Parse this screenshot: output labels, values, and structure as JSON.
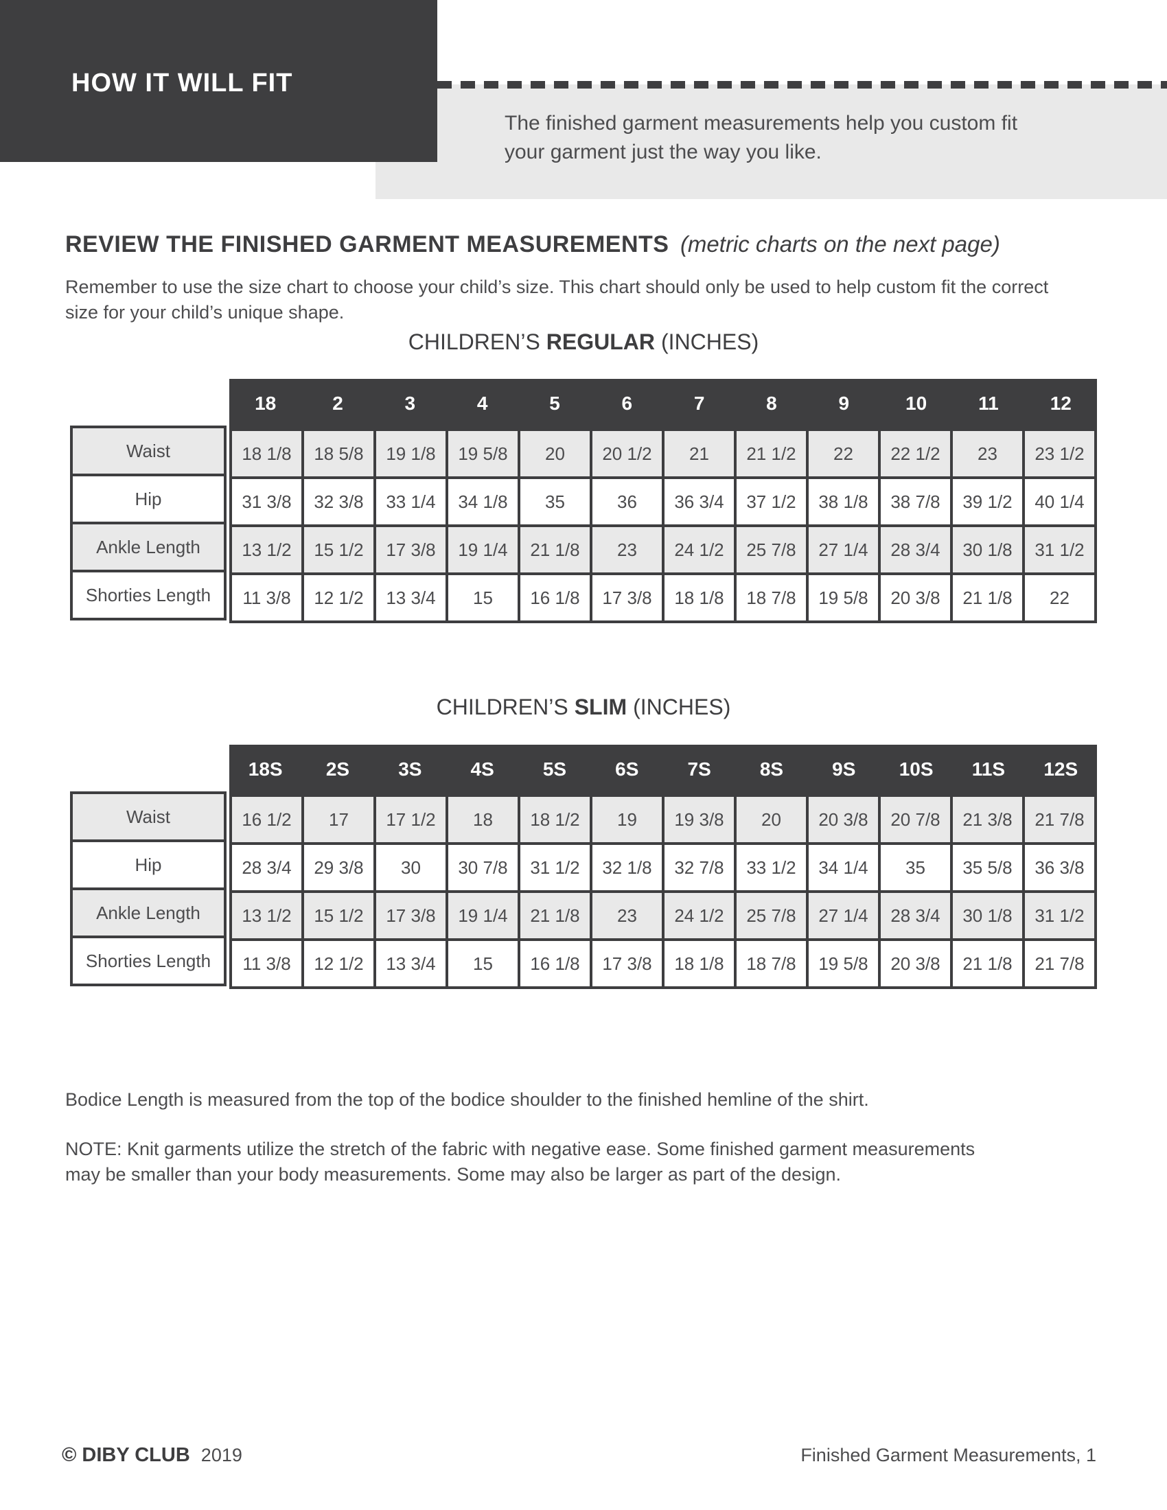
{
  "banner": {
    "title": "HOW IT WILL FIT",
    "intro": "The finished garment measurements help you custom fit your garment just the way you like."
  },
  "section": {
    "heading_bold": "REVIEW THE FINISHED GARMENT MEASUREMENTS",
    "heading_italic": "(metric charts on the next page)",
    "paragraph": "Remember to use the size chart to choose your child’s size. This chart should only be used to help custom fit the correct size for your child’s unique shape."
  },
  "tables": [
    {
      "title_prefix": "CHILDREN’S",
      "title_bold": "REGULAR",
      "title_suffix": "(INCHES)",
      "columns": [
        "18",
        "2",
        "3",
        "4",
        "5",
        "6",
        "7",
        "8",
        "9",
        "10",
        "11",
        "12"
      ],
      "rows": [
        {
          "label": "Waist",
          "values": [
            "18 1/8",
            "18 5/8",
            "19 1/8",
            "19 5/8",
            "20",
            "20 1/2",
            "21",
            "21 1/2",
            "22",
            "22 1/2",
            "23",
            "23 1/2"
          ]
        },
        {
          "label": "Hip",
          "values": [
            "31 3/8",
            "32 3/8",
            "33 1/4",
            "34 1/8",
            "35",
            "36",
            "36 3/4",
            "37 1/2",
            "38 1/8",
            "38 7/8",
            "39 1/2",
            "40 1/4"
          ]
        },
        {
          "label": "Ankle Length",
          "values": [
            "13 1/2",
            "15 1/2",
            "17 3/8",
            "19 1/4",
            "21 1/8",
            "23",
            "24 1/2",
            "25 7/8",
            "27 1/4",
            "28 3/4",
            "30 1/8",
            "31 1/2"
          ]
        },
        {
          "label": "Shorties Length",
          "values": [
            "11 3/8",
            "12 1/2",
            "13 3/4",
            "15",
            "16 1/8",
            "17 3/8",
            "18 1/8",
            "18 7/8",
            "19 5/8",
            "20 3/8",
            "21 1/8",
            "22"
          ]
        }
      ]
    },
    {
      "title_prefix": "CHILDREN’S",
      "title_bold": "SLIM",
      "title_suffix": "(INCHES)",
      "columns": [
        "18S",
        "2S",
        "3S",
        "4S",
        "5S",
        "6S",
        "7S",
        "8S",
        "9S",
        "10S",
        "11S",
        "12S"
      ],
      "rows": [
        {
          "label": "Waist",
          "values": [
            "16 1/2",
            "17",
            "17 1/2",
            "18",
            "18 1/2",
            "19",
            "19 3/8",
            "20",
            "20 3/8",
            "20 7/8",
            "21 3/8",
            "21 7/8"
          ]
        },
        {
          "label": "Hip",
          "values": [
            "28 3/4",
            "29 3/8",
            "30",
            "30 7/8",
            "31 1/2",
            "32 1/8",
            "32 7/8",
            "33 1/2",
            "34 1/4",
            "35",
            "35 5/8",
            "36 3/8"
          ]
        },
        {
          "label": "Ankle Length",
          "values": [
            "13 1/2",
            "15 1/2",
            "17 3/8",
            "19 1/4",
            "21 1/8",
            "23",
            "24 1/2",
            "25 7/8",
            "27 1/4",
            "28 3/4",
            "30 1/8",
            "31 1/2"
          ]
        },
        {
          "label": "Shorties Length",
          "values": [
            "11 3/8",
            "12 1/2",
            "13 3/4",
            "15",
            "16 1/8",
            "17 3/8",
            "18 1/8",
            "18 7/8",
            "19 5/8",
            "20 3/8",
            "21 1/8",
            "21 7/8"
          ]
        }
      ]
    }
  ],
  "notes": {
    "bodice": "Bodice Length is measured from the top of the bodice shoulder to the finished hemline of the shirt.",
    "knit": "NOTE: Knit garments utilize the stretch of the fabric with negative ease. Some finished garment measurements may be smaller than your body measurements. Some may also be larger as part of the design."
  },
  "footer": {
    "brand": "© DIBY CLUB",
    "year": "2019",
    "page_label": "Finished Garment Measurements, 1"
  },
  "colors": {
    "dark": "#3e3e40",
    "light_gray": "#e9e9e9",
    "body_text": "#4c4c4e"
  }
}
